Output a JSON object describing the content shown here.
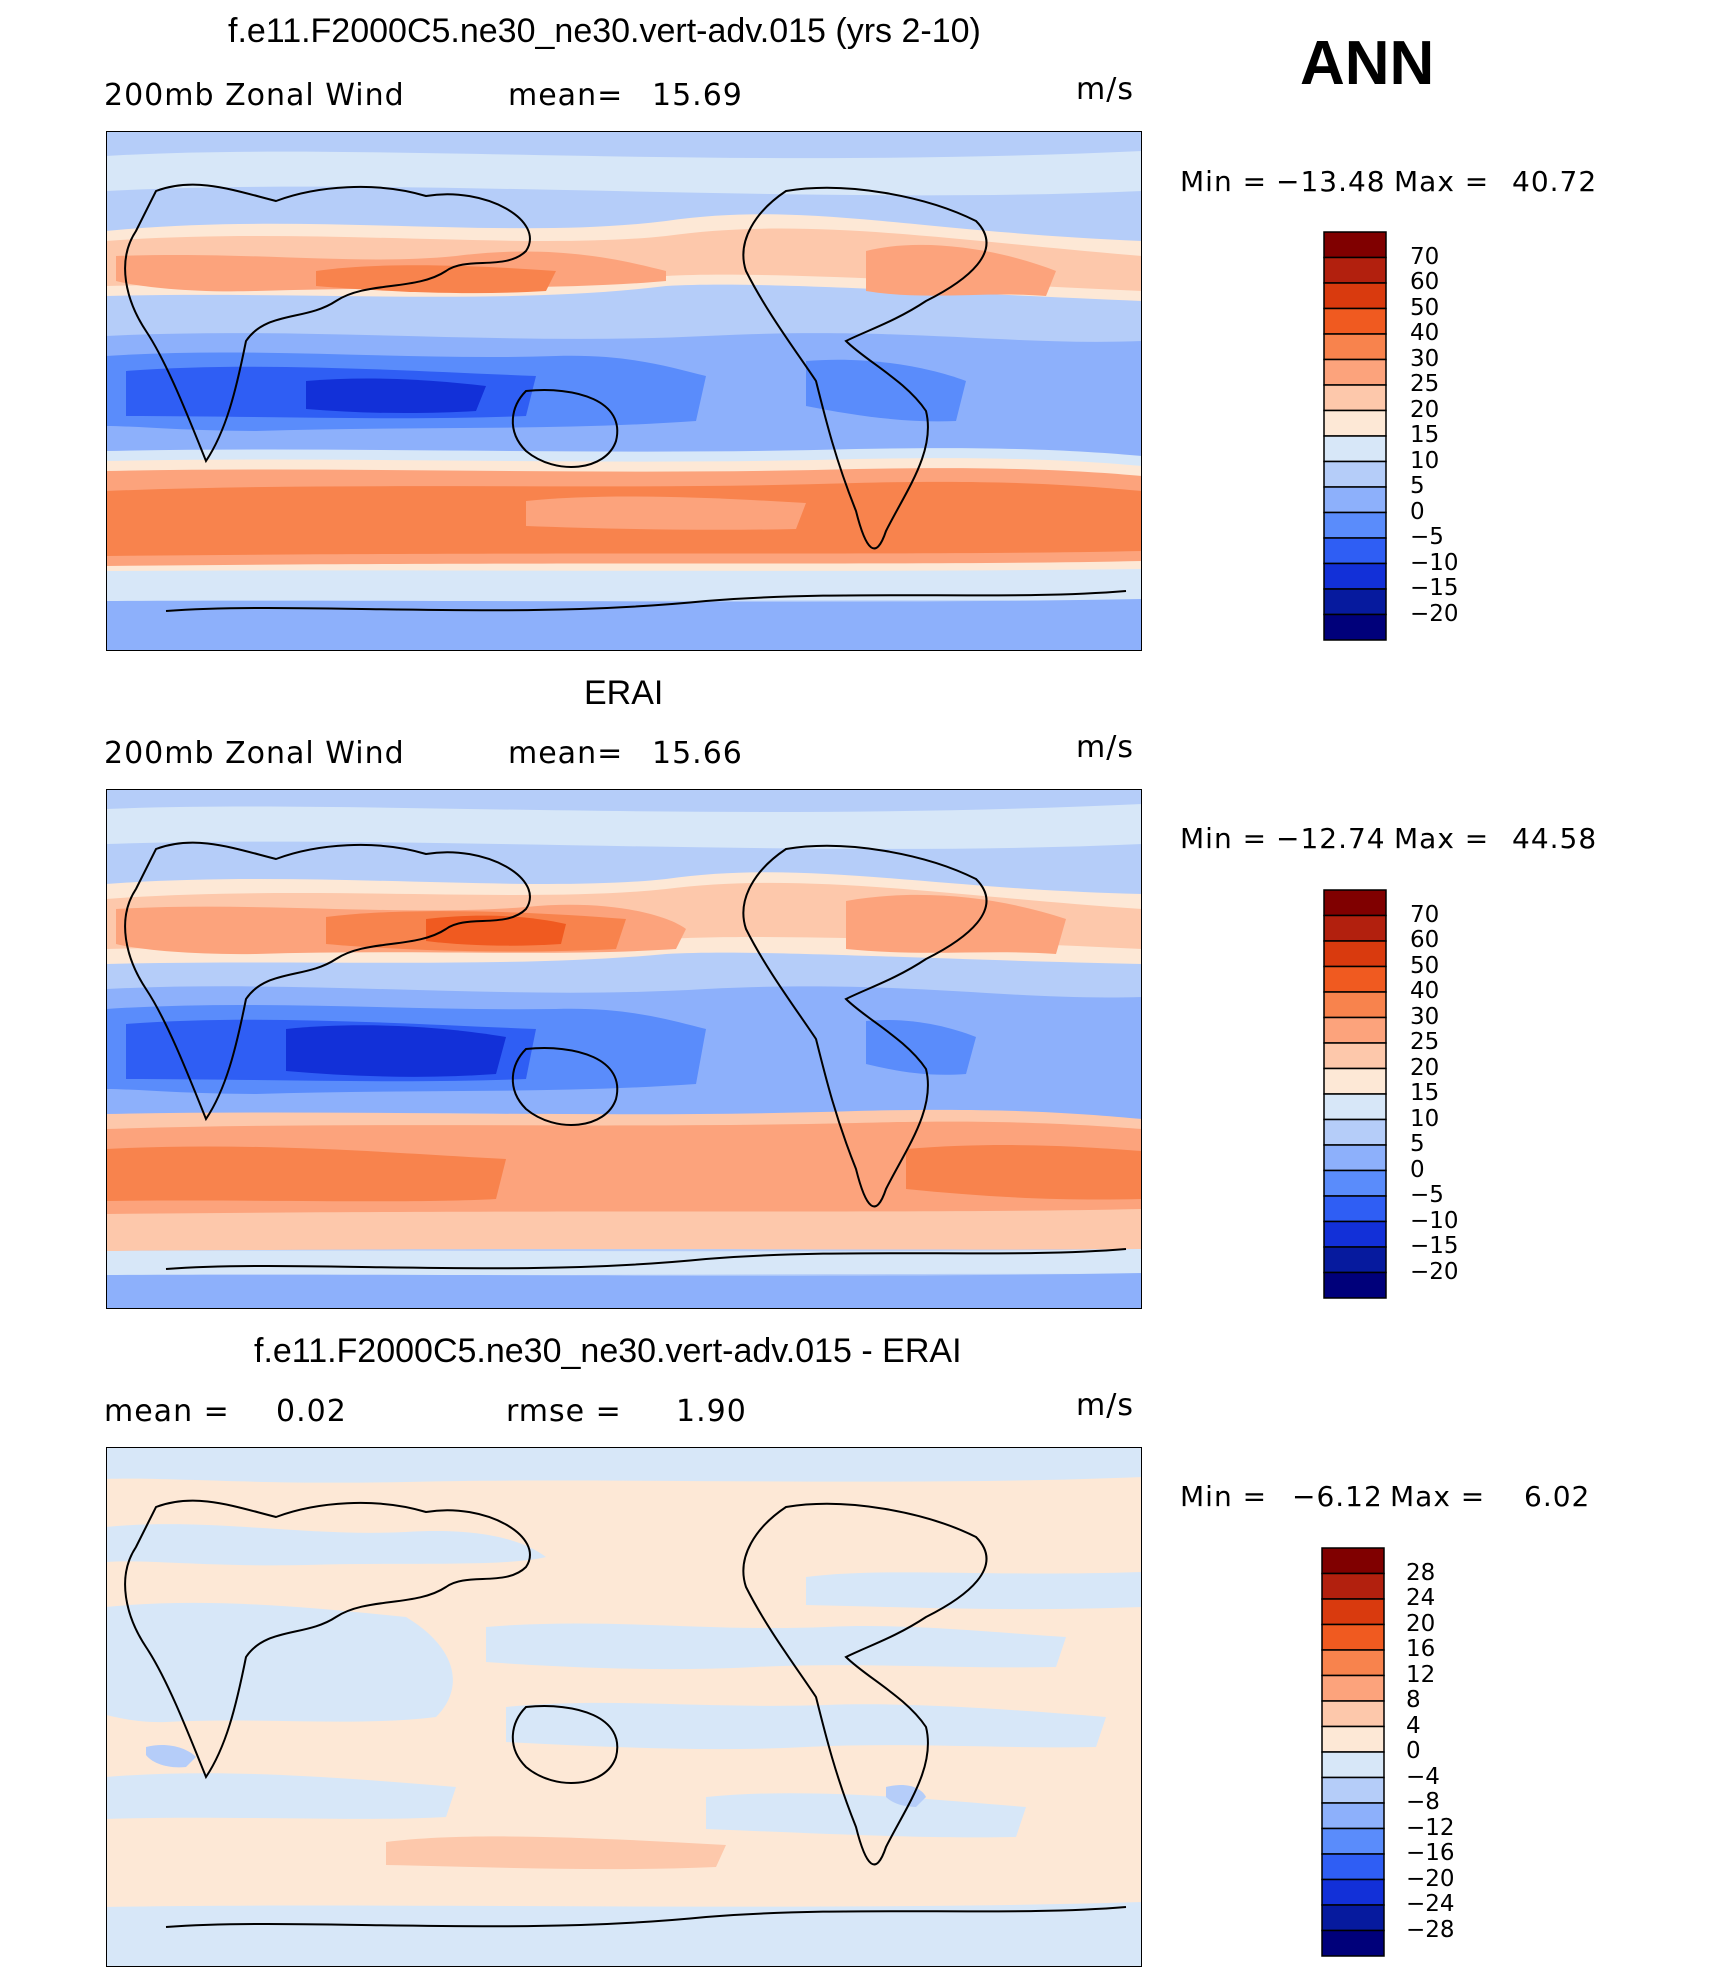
{
  "chart_data": [
    {
      "type": "heatmap",
      "title": "f.e11.F2000C5.ne30_ne30.vert-adv.015 (yrs 2-10)",
      "left_label": "200mb Zonal Wind",
      "stat_label": "mean=",
      "stat_value": "15.69",
      "units": "m/s",
      "min_label": "Min =",
      "min_value": "−13.48",
      "max_label": "Max =",
      "max_value": "40.72",
      "levels": [
        "70",
        "60",
        "50",
        "40",
        "30",
        "25",
        "20",
        "15",
        "10",
        "5",
        "0",
        "−5",
        "−10",
        "−15",
        "−20"
      ],
      "colors": [
        "#800000",
        "#b2200e",
        "#d93a0e",
        "#f05a20",
        "#f8834d",
        "#fca37c",
        "#fdc8ab",
        "#fde8d6",
        "#d7e7f8",
        "#b5cdf9",
        "#8db0fb",
        "#5a8cfb",
        "#2f5ef4",
        "#1230d8",
        "#061a9e",
        "#00007a"
      ]
    },
    {
      "type": "heatmap",
      "title": "ERAI",
      "left_label": "200mb Zonal Wind",
      "stat_label": "mean=",
      "stat_value": "15.66",
      "units": "m/s",
      "min_label": "Min =",
      "min_value": "−12.74",
      "max_label": "Max =",
      "max_value": "44.58",
      "levels": [
        "70",
        "60",
        "50",
        "40",
        "30",
        "25",
        "20",
        "15",
        "10",
        "5",
        "0",
        "−5",
        "−10",
        "−15",
        "−20"
      ],
      "colors": [
        "#800000",
        "#b2200e",
        "#d93a0e",
        "#f05a20",
        "#f8834d",
        "#fca37c",
        "#fdc8ab",
        "#fde8d6",
        "#d7e7f8",
        "#b5cdf9",
        "#8db0fb",
        "#5a8cfb",
        "#2f5ef4",
        "#1230d8",
        "#061a9e",
        "#00007a"
      ]
    },
    {
      "type": "heatmap",
      "title": "f.e11.F2000C5.ne30_ne30.vert-adv.015 - ERAI",
      "left_label": "mean =",
      "left_value": "0.02",
      "stat_label": "rmse =",
      "stat_value": "1.90",
      "units": "m/s",
      "min_label": "Min =",
      "min_value": "−6.12",
      "max_label": "Max =",
      "max_value": "6.02",
      "levels": [
        "28",
        "24",
        "20",
        "16",
        "12",
        "8",
        "4",
        "0",
        "−4",
        "−8",
        "−12",
        "−16",
        "−20",
        "−24",
        "−28"
      ],
      "colors": [
        "#800000",
        "#b2200e",
        "#d93a0e",
        "#f05a20",
        "#f8834d",
        "#fca37c",
        "#fdc8ab",
        "#fde8d6",
        "#d7e7f8",
        "#b5cdf9",
        "#8db0fb",
        "#5a8cfb",
        "#2f5ef4",
        "#1230d8",
        "#061a9e",
        "#00007a"
      ]
    }
  ],
  "season": "ANN"
}
